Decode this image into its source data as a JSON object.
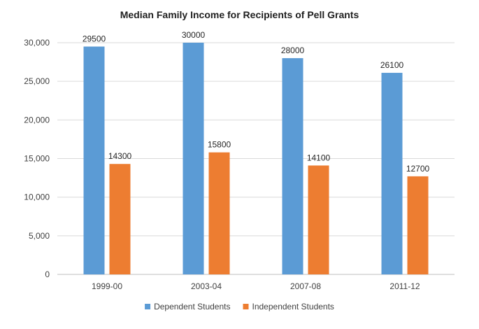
{
  "chart_data": {
    "type": "bar",
    "title": "Median Family Income for Recipients of Pell Grants",
    "categories": [
      "1999-00",
      "2003-04",
      "2007-08",
      "2011-12"
    ],
    "series": [
      {
        "name": "Dependent Students",
        "values": [
          29500,
          30000,
          28000,
          26100
        ],
        "color": "#5B9BD5"
      },
      {
        "name": "Independent Students",
        "values": [
          14300,
          15800,
          14100,
          12700
        ],
        "color": "#ED7D31"
      }
    ],
    "ylim": [
      0,
      30000
    ],
    "yticks": [
      0,
      5000,
      10000,
      15000,
      20000,
      25000,
      30000
    ],
    "ytick_labels": [
      "0",
      "5,000",
      "10,000",
      "15,000",
      "20,000",
      "25,000",
      "30,000"
    ],
    "grid": true,
    "legend_position": "bottom",
    "xlabel": "",
    "ylabel": ""
  }
}
